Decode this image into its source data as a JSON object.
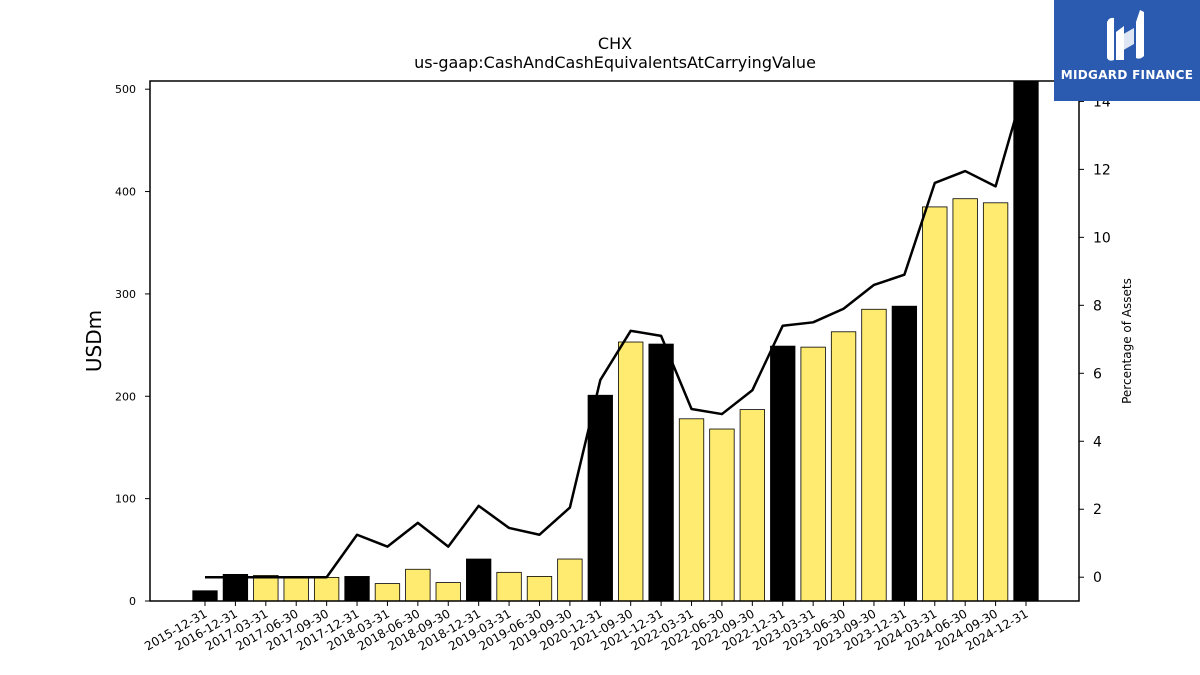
{
  "chart_data": {
    "type": "bar",
    "title": "CHX",
    "subtitle": "us-gaap:CashAndCashEquivalentsAtCarryingValue",
    "ylabel": "USDm",
    "y2label": "Percentage of Assets",
    "ylim": [
      0,
      508
    ],
    "y2lim": [
      -0.7,
      14.6
    ],
    "yticks": [
      0,
      100,
      200,
      300,
      400,
      500
    ],
    "y2ticks": [
      0,
      2,
      4,
      6,
      8,
      10,
      12,
      14
    ],
    "categories": [
      "2015-12-31",
      "2016-12-31",
      "2017-03-31",
      "2017-06-30",
      "2017-09-30",
      "2017-12-31",
      "2018-03-31",
      "2018-06-30",
      "2018-09-30",
      "2018-12-31",
      "2019-03-31",
      "2019-06-30",
      "2019-09-30",
      "2020-12-31",
      "2021-09-30",
      "2021-12-31",
      "2022-03-31",
      "2022-06-30",
      "2022-09-30",
      "2022-12-31",
      "2023-03-31",
      "2023-06-30",
      "2023-09-30",
      "2023-12-31",
      "2024-03-31",
      "2024-06-30",
      "2024-09-30",
      "2024-12-31"
    ],
    "series": [
      {
        "values": [
          10,
          26,
          25,
          24,
          23,
          24,
          17,
          31,
          18,
          41,
          28,
          24,
          41,
          201,
          253,
          251,
          178,
          168,
          187,
          249,
          248,
          263,
          285,
          288,
          385,
          393,
          389,
          508
        ],
        "annual": [
          true,
          true,
          false,
          false,
          false,
          true,
          false,
          false,
          false,
          true,
          false,
          false,
          false,
          true,
          false,
          true,
          false,
          false,
          false,
          true,
          false,
          false,
          false,
          true,
          false,
          false,
          false,
          true
        ],
        "colors": {
          "annual": "#000000",
          "quarterly": "#ffeb70",
          "edge": "#000000"
        }
      },
      {
        "axis": "right",
        "values": [
          0.0,
          0.0,
          0.0,
          0.0,
          0.0,
          1.25,
          0.9,
          1.6,
          0.9,
          2.1,
          1.45,
          1.25,
          2.05,
          5.8,
          7.25,
          7.1,
          4.95,
          4.8,
          5.5,
          7.4,
          7.5,
          7.9,
          8.6,
          8.9,
          11.6,
          11.95,
          11.5,
          14.6
        ],
        "color": "#000000"
      }
    ],
    "grid": false,
    "legend": "none"
  },
  "logo": {
    "text": "MIDGARD FINANCE",
    "background": "#2b5bb0",
    "icon": "midgard-logo-icon"
  }
}
